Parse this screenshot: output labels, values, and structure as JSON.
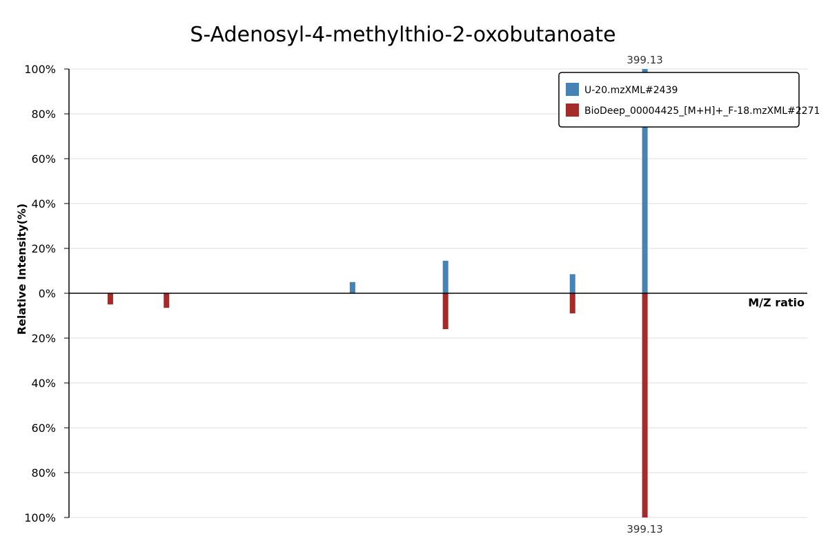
{
  "chart_data": {
    "type": "bar",
    "title": "S-Adenosyl-4-methylthio-2-oxobutanoate",
    "xlabel": "M/Z ratio",
    "ylabel": "Relative Intensity(%)",
    "y_ticks_top": [
      "100%",
      "80%",
      "60%",
      "40%",
      "20%",
      "0%"
    ],
    "y_ticks_bottom": [
      "20%",
      "40%",
      "60%",
      "80%",
      "100%"
    ],
    "ylim": [
      -100,
      100
    ],
    "grid": true,
    "legend_position": "top-right",
    "colors": {
      "query": "#4682b4",
      "reference": "#a52a2a"
    },
    "series": [
      {
        "name": "U-20.mzXML#2439",
        "direction": "up",
        "peaks": [
          {
            "x": 0.384,
            "y": 5
          },
          {
            "x": 0.51,
            "y": 14.5
          },
          {
            "x": 0.682,
            "y": 8.5
          },
          {
            "x": 0.78,
            "y": 100,
            "label": "399.13"
          }
        ]
      },
      {
        "name": "BioDeep_00004425_[M+H]+_F-18.mzXML#2271",
        "direction": "down",
        "peaks": [
          {
            "x": 0.056,
            "y": 5
          },
          {
            "x": 0.132,
            "y": 6.5
          },
          {
            "x": 0.51,
            "y": 16
          },
          {
            "x": 0.682,
            "y": 9
          },
          {
            "x": 0.78,
            "y": 100,
            "label": "399.13"
          }
        ]
      }
    ]
  }
}
